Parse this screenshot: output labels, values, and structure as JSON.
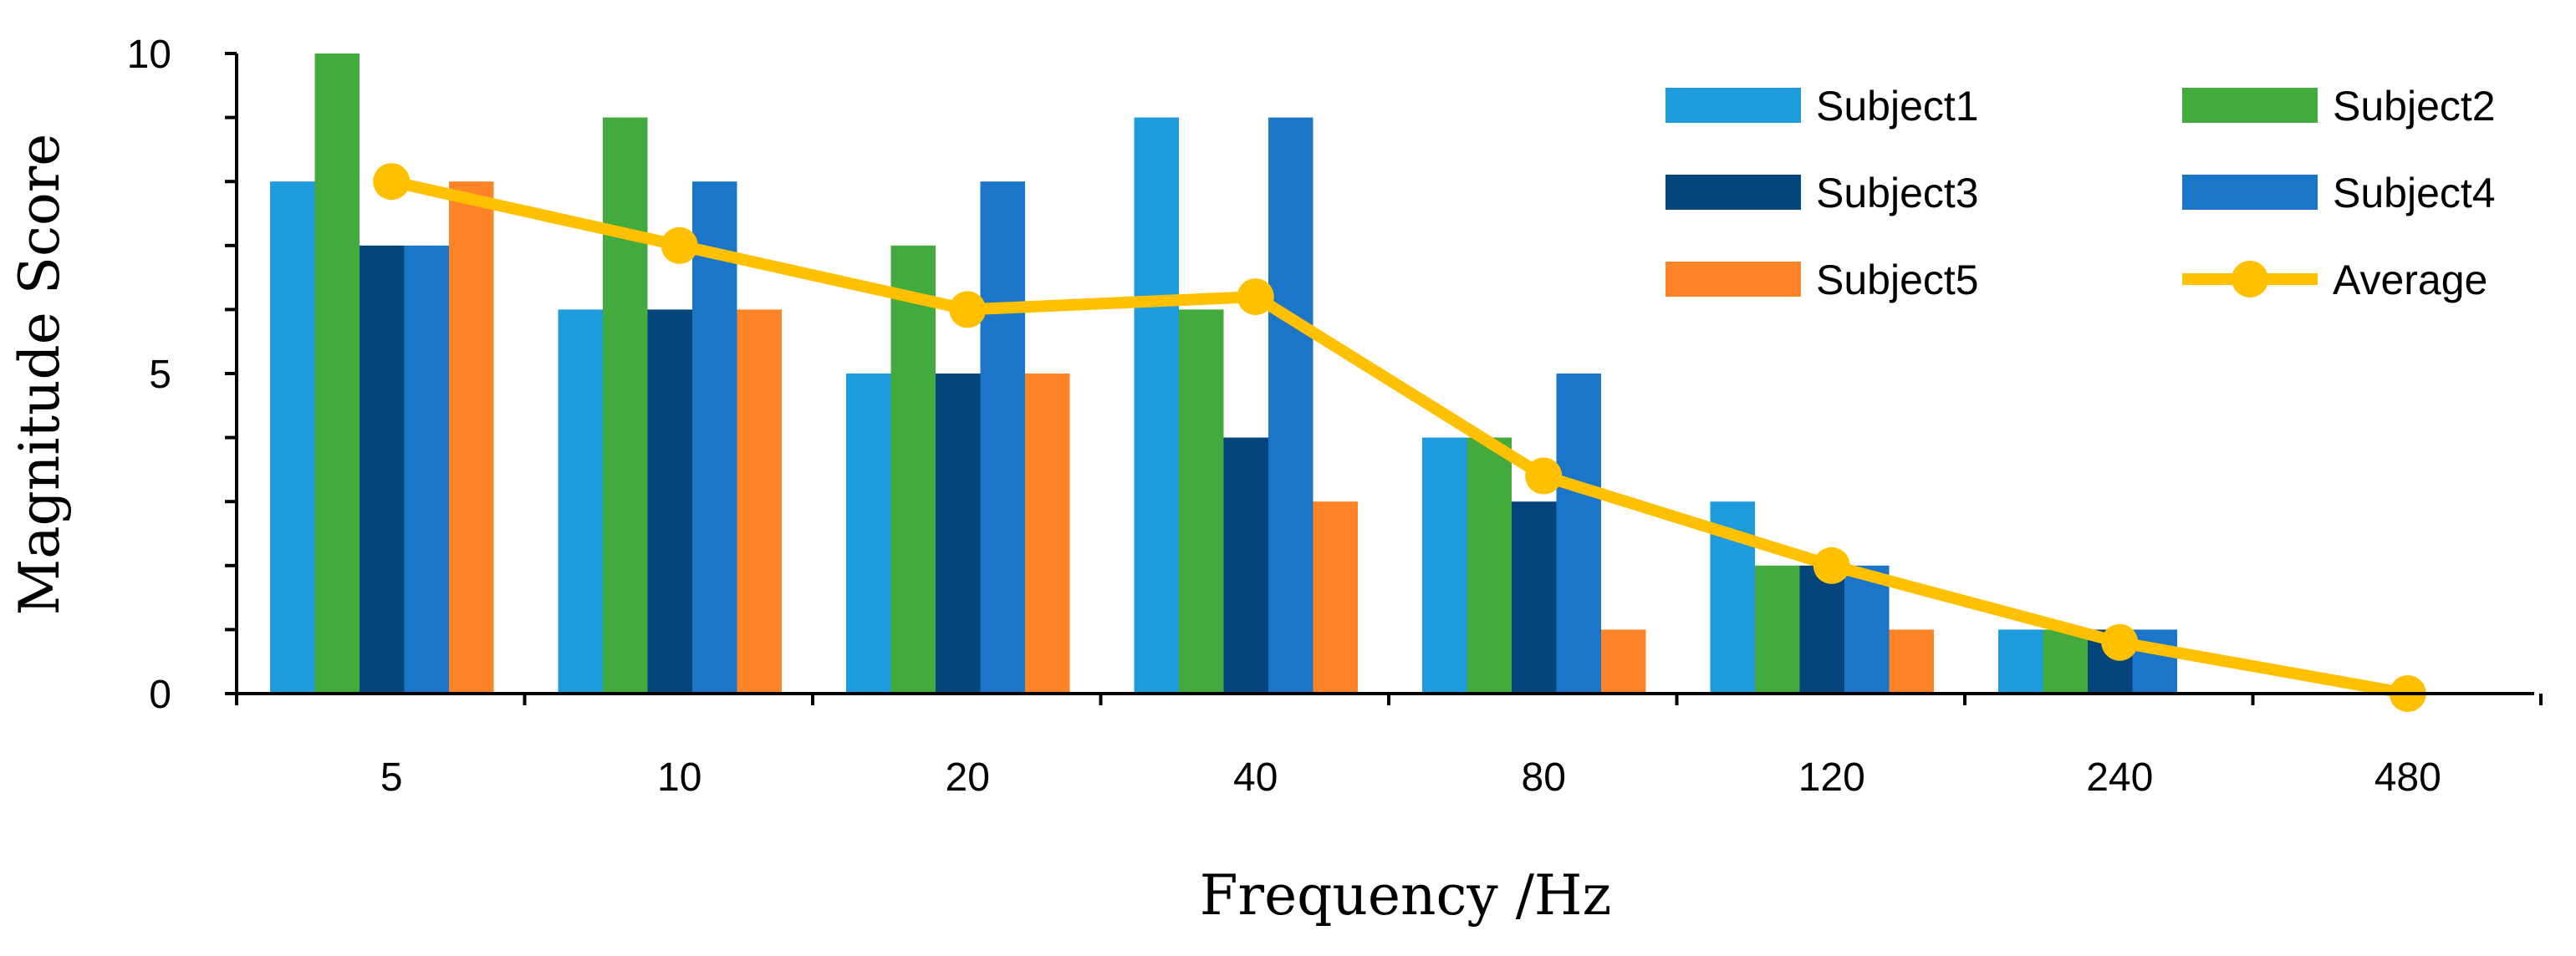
{
  "chart_data": {
    "type": "bar",
    "title": "",
    "xlabel": "Frequency /Hz",
    "ylabel": "Magnitude Score",
    "categories": [
      "5",
      "10",
      "20",
      "40",
      "80",
      "120",
      "240",
      "480"
    ],
    "ylim": [
      0,
      10
    ],
    "yticks": [
      "0",
      "5",
      "10"
    ],
    "grid": false,
    "legend_position": "top-right",
    "series": [
      {
        "name": "Subject1",
        "type": "bar",
        "color": "#1E9BDC",
        "values": [
          8,
          6,
          5,
          9,
          4,
          3,
          1,
          0
        ]
      },
      {
        "name": "Subject2",
        "type": "bar",
        "color": "#43AA3E",
        "values": [
          10,
          9,
          7,
          6,
          4,
          2,
          1,
          0
        ]
      },
      {
        "name": "Subject3",
        "type": "bar",
        "color": "#04457B",
        "values": [
          7,
          6,
          5,
          4,
          3,
          2,
          1,
          0
        ]
      },
      {
        "name": "Subject4",
        "type": "bar",
        "color": "#1B75C8",
        "values": [
          7,
          8,
          8,
          9,
          5,
          2,
          1,
          0
        ]
      },
      {
        "name": "Subject5",
        "type": "bar",
        "color": "#FF8427",
        "values": [
          8,
          6,
          5,
          3,
          1,
          1,
          0,
          0
        ]
      },
      {
        "name": "Average",
        "type": "line",
        "color": "#FFC000",
        "values": [
          8,
          7,
          6,
          6.2,
          3.4,
          2,
          0.8,
          0
        ]
      }
    ]
  }
}
